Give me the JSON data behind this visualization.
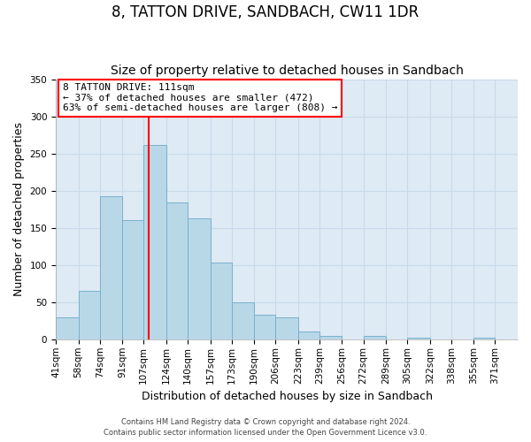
{
  "title": "8, TATTON DRIVE, SANDBACH, CW11 1DR",
  "subtitle": "Size of property relative to detached houses in Sandbach",
  "xlabel": "Distribution of detached houses by size in Sandbach",
  "ylabel": "Number of detached properties",
  "bin_labels": [
    "41sqm",
    "58sqm",
    "74sqm",
    "91sqm",
    "107sqm",
    "124sqm",
    "140sqm",
    "157sqm",
    "173sqm",
    "190sqm",
    "206sqm",
    "223sqm",
    "239sqm",
    "256sqm",
    "272sqm",
    "289sqm",
    "305sqm",
    "322sqm",
    "338sqm",
    "355sqm",
    "371sqm"
  ],
  "bin_edges": [
    41,
    58,
    74,
    91,
    107,
    124,
    140,
    157,
    173,
    190,
    206,
    223,
    239,
    256,
    272,
    289,
    305,
    322,
    338,
    355,
    371,
    388
  ],
  "bar_heights": [
    30,
    65,
    193,
    160,
    262,
    184,
    163,
    103,
    50,
    33,
    30,
    11,
    5,
    0,
    5,
    0,
    2,
    0,
    0,
    2,
    0
  ],
  "bar_color": "#b8d8e8",
  "bar_edge_color": "#7ab0cc",
  "vline_x": 111,
  "vline_color": "red",
  "ylim": [
    0,
    350
  ],
  "yticks": [
    0,
    50,
    100,
    150,
    200,
    250,
    300,
    350
  ],
  "annotation_box_text": "8 TATTON DRIVE: 111sqm\n← 37% of detached houses are smaller (472)\n63% of semi-detached houses are larger (808) →",
  "footnote1": "Contains HM Land Registry data © Crown copyright and database right 2024.",
  "footnote2": "Contains public sector information licensed under the Open Government Licence v3.0.",
  "grid_color": "#c8daea",
  "background_color": "#deeaf4",
  "title_fontsize": 12,
  "subtitle_fontsize": 10,
  "xlabel_fontsize": 9,
  "ylabel_fontsize": 9,
  "tick_fontsize": 7.5,
  "annot_fontsize": 8,
  "footnote_fontsize": 6
}
